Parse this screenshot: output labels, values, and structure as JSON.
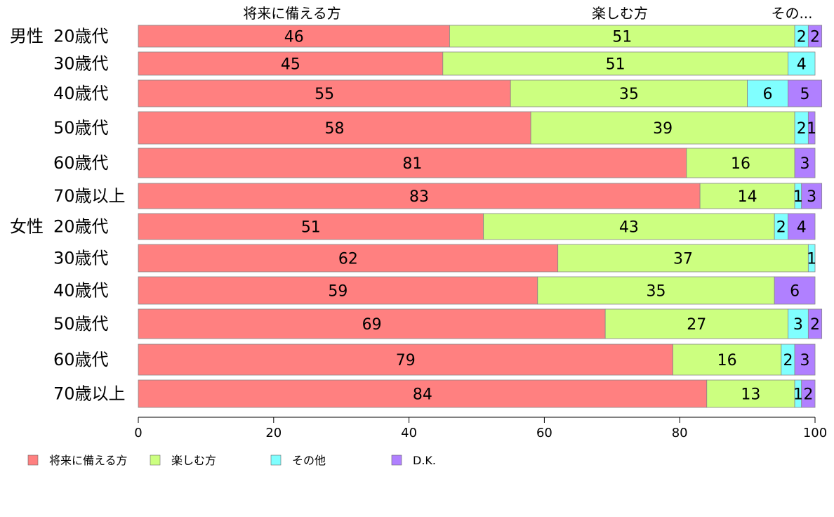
{
  "chart_data": {
    "type": "bar",
    "orientation": "horizontal",
    "stacked": true,
    "top_labels": [
      "将来に備える方",
      "楽しむ方",
      "その..."
    ],
    "groups": [
      {
        "label": "男性",
        "rows": [
          "20歳代",
          "30歳代",
          "40歳代",
          "50歳代",
          "60歳代",
          "70歳以上"
        ]
      },
      {
        "label": "女性",
        "rows": [
          "20歳代",
          "30歳代",
          "40歳代",
          "50歳代",
          "60歳代",
          "70歳以上"
        ]
      }
    ],
    "series": [
      {
        "name": "将来に備える方",
        "color": "#ff8080",
        "values": [
          46,
          45,
          55,
          58,
          81,
          83,
          51,
          62,
          59,
          69,
          79,
          84
        ],
        "labels": [
          "46",
          "45",
          "55",
          "58",
          "81",
          "83",
          "51",
          "62",
          "59",
          "69",
          "79",
          "84"
        ]
      },
      {
        "name": "楽しむ方",
        "color": "#ccff80",
        "values": [
          51,
          51,
          35,
          39,
          16,
          14,
          43,
          37,
          35,
          27,
          16,
          13
        ],
        "labels": [
          "51",
          "51",
          "35",
          "39",
          "16",
          "14",
          "43",
          "37",
          "35",
          "27",
          "16",
          "13"
        ]
      },
      {
        "name": "その他",
        "color": "#80ffff",
        "values": [
          2,
          4,
          6,
          2,
          0,
          1,
          2,
          1,
          0,
          3,
          2,
          1
        ],
        "labels": [
          "2",
          "4",
          "6",
          "2",
          "",
          "1",
          "2",
          "1",
          "",
          "3",
          "2",
          "1"
        ]
      },
      {
        "name": "D.K.",
        "color": "#b080ff",
        "values": [
          2,
          0,
          5,
          1,
          3,
          3,
          4,
          0,
          6,
          2,
          3,
          2
        ],
        "labels": [
          "2",
          "",
          "5",
          "1",
          "3",
          "3",
          "4",
          "",
          "6",
          "2",
          "3",
          "2"
        ]
      }
    ],
    "xlim": [
      0,
      100
    ],
    "xticks": [
      "0",
      "20",
      "40",
      "60",
      "80",
      "100"
    ],
    "legend_position": "bottom-left",
    "grid": false
  }
}
